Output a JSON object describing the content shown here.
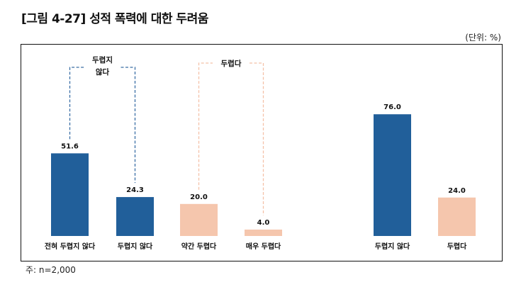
{
  "title": "[그림 4-27] 성적 폭력에 대한 두려움",
  "unit": "(단위: %)",
  "note": "주: n=2,000",
  "chart_data": {
    "type": "bar",
    "categories": [
      "전혀 두렵지 않다",
      "두렵지 않다",
      "약간 두렵다",
      "매우 두렵다",
      "두렵지 않다",
      "두렵다"
    ],
    "values": [
      51.6,
      24.3,
      20.0,
      4.0,
      76.0,
      24.0
    ],
    "labels": [
      "51.6",
      "24.3",
      "20.0",
      "4.0",
      "76.0",
      "24.0"
    ],
    "ylim": [
      0,
      80
    ],
    "grid": false,
    "groups": [
      {
        "label_lines": [
          "두렵지",
          "않다"
        ],
        "members": [
          0,
          1
        ],
        "color": "#3a6ea5"
      },
      {
        "label_lines": [
          "두렵다"
        ],
        "members": [
          2,
          3
        ],
        "color": "#f4c1a8"
      }
    ],
    "colors": {
      "not_afraid": "#215f9a",
      "afraid": "#f5c6ad"
    },
    "bar_colors": [
      "#215f9a",
      "#215f9a",
      "#f5c6ad",
      "#f5c6ad",
      "#215f9a",
      "#f5c6ad"
    ]
  }
}
